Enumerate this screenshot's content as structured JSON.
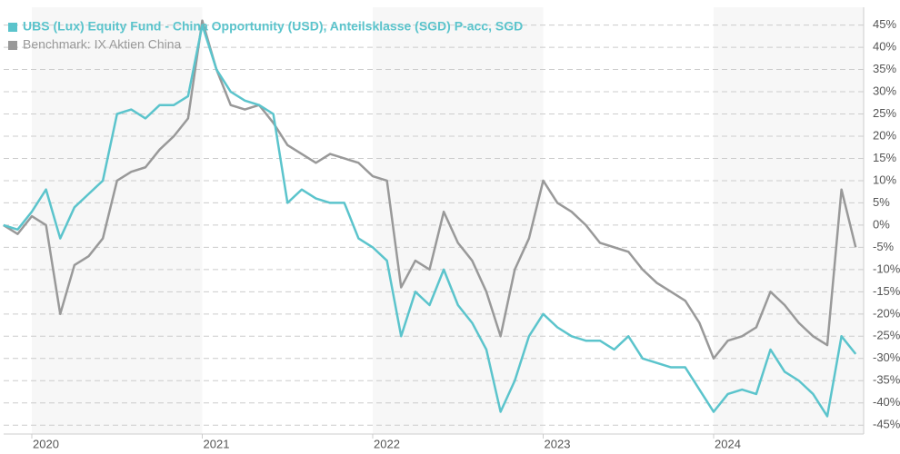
{
  "chart_data": {
    "type": "line",
    "categories": [
      null,
      null,
      "2020",
      null,
      null,
      null,
      null,
      null,
      null,
      null,
      null,
      null,
      null,
      null,
      "2021",
      null,
      null,
      null,
      null,
      null,
      null,
      null,
      null,
      null,
      null,
      null,
      "2022",
      null,
      null,
      null,
      null,
      null,
      null,
      null,
      null,
      null,
      null,
      null,
      "2023",
      null,
      null,
      null,
      null,
      null,
      null,
      null,
      null,
      null,
      null,
      null,
      "2024",
      null,
      null,
      null,
      null,
      null,
      null,
      null,
      null,
      null,
      null
    ],
    "series": [
      {
        "name": "UBS (Lux) Equity Fund - China Opportunity (USD), Anteilsklasse (SGD) P-acc, SGD",
        "color": "#5bc4cc",
        "values": [
          0,
          -1,
          3,
          8,
          -3,
          4,
          7,
          10,
          25,
          26,
          24,
          27,
          27,
          29,
          45,
          35,
          30,
          28,
          27,
          25,
          5,
          8,
          6,
          5,
          5,
          -3,
          -5,
          -8,
          -25,
          -15,
          -18,
          -10,
          -18,
          -22,
          -28,
          -42,
          -35,
          -25,
          -20,
          -23,
          -25,
          -26,
          -26,
          -28,
          -25,
          -30,
          -31,
          -32,
          -32,
          -37,
          -42,
          -38,
          -37,
          -38,
          -28,
          -33,
          -35,
          -38,
          -43,
          -25,
          -29
        ]
      },
      {
        "name": "Benchmark: IX Aktien China",
        "color": "#999999",
        "values": [
          0,
          -2,
          2,
          0,
          -20,
          -9,
          -7,
          -3,
          10,
          12,
          13,
          17,
          20,
          24,
          46,
          35,
          27,
          26,
          27,
          23,
          18,
          16,
          14,
          16,
          15,
          14,
          11,
          10,
          -14,
          -8,
          -10,
          3,
          -4,
          -8,
          -15,
          -25,
          -10,
          -3,
          10,
          5,
          3,
          0,
          -4,
          -5,
          -6,
          -10,
          -13,
          -15,
          -17,
          -22,
          -30,
          -26,
          -25,
          -23,
          -15,
          -18,
          -22,
          -25,
          -27,
          8,
          -5
        ]
      }
    ],
    "ylim": [
      -47,
      49
    ],
    "yticks": [
      {
        "value": 45,
        "label": "45%"
      },
      {
        "value": 40,
        "label": "40%"
      },
      {
        "value": 35,
        "label": "35%"
      },
      {
        "value": 30,
        "label": "30%"
      },
      {
        "value": 25,
        "label": "25%"
      },
      {
        "value": 20,
        "label": "20%"
      },
      {
        "value": 15,
        "label": "15%"
      },
      {
        "value": 10,
        "label": "10%"
      },
      {
        "value": 5,
        "label": "5%"
      },
      {
        "value": 0,
        "label": "0%"
      },
      {
        "value": -5,
        "label": "-5%"
      },
      {
        "value": -10,
        "label": "-10%"
      },
      {
        "value": -15,
        "label": "-15%"
      },
      {
        "value": -20,
        "label": "-20%"
      },
      {
        "value": -25,
        "label": "-25%"
      },
      {
        "value": -30,
        "label": "-30%"
      },
      {
        "value": -35,
        "label": "-35%"
      },
      {
        "value": -40,
        "label": "-40%"
      },
      {
        "value": -45,
        "label": "-45%"
      }
    ],
    "grid": true
  }
}
